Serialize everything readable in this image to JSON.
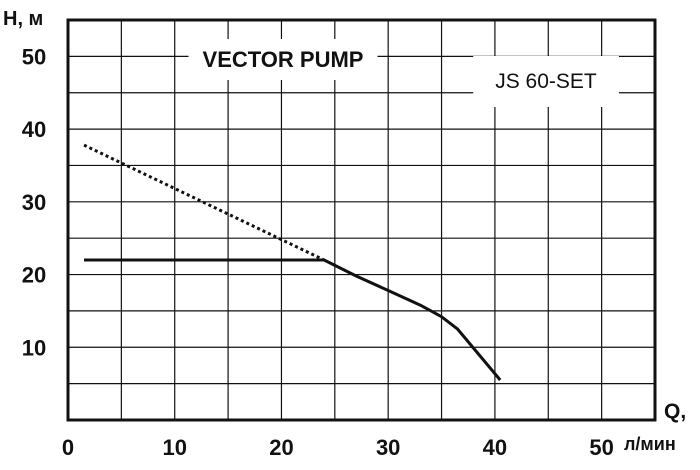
{
  "chart_data": {
    "type": "line",
    "title": "VECTOR PUMP",
    "subtitle": "JS 60-SET",
    "ylabel": "H, м",
    "xlabel_top": "Q,",
    "xlabel_bottom": "л/мин",
    "xlim": [
      0,
      55
    ],
    "ylim": [
      0,
      55
    ],
    "x_ticks": [
      0,
      10,
      20,
      30,
      40,
      50
    ],
    "y_ticks": [
      10,
      20,
      30,
      40,
      50
    ],
    "x_tick_labels": [
      "0",
      "10",
      "20",
      "30",
      "40",
      "50"
    ],
    "y_tick_labels": [
      "10",
      "20",
      "30",
      "40",
      "50"
    ],
    "grid": true,
    "series": [
      {
        "style": "solid",
        "color": "#111111",
        "points": [
          [
            1.5,
            22
          ],
          [
            24,
            22
          ],
          [
            27,
            19.8
          ],
          [
            30,
            17.8
          ],
          [
            33,
            15.8
          ],
          [
            35,
            14.2
          ],
          [
            36.5,
            12.5
          ],
          [
            40.5,
            5.5
          ]
        ]
      },
      {
        "style": "dotted",
        "color": "#111111",
        "points": [
          [
            1.5,
            37.8
          ],
          [
            24,
            22
          ]
        ]
      }
    ]
  }
}
